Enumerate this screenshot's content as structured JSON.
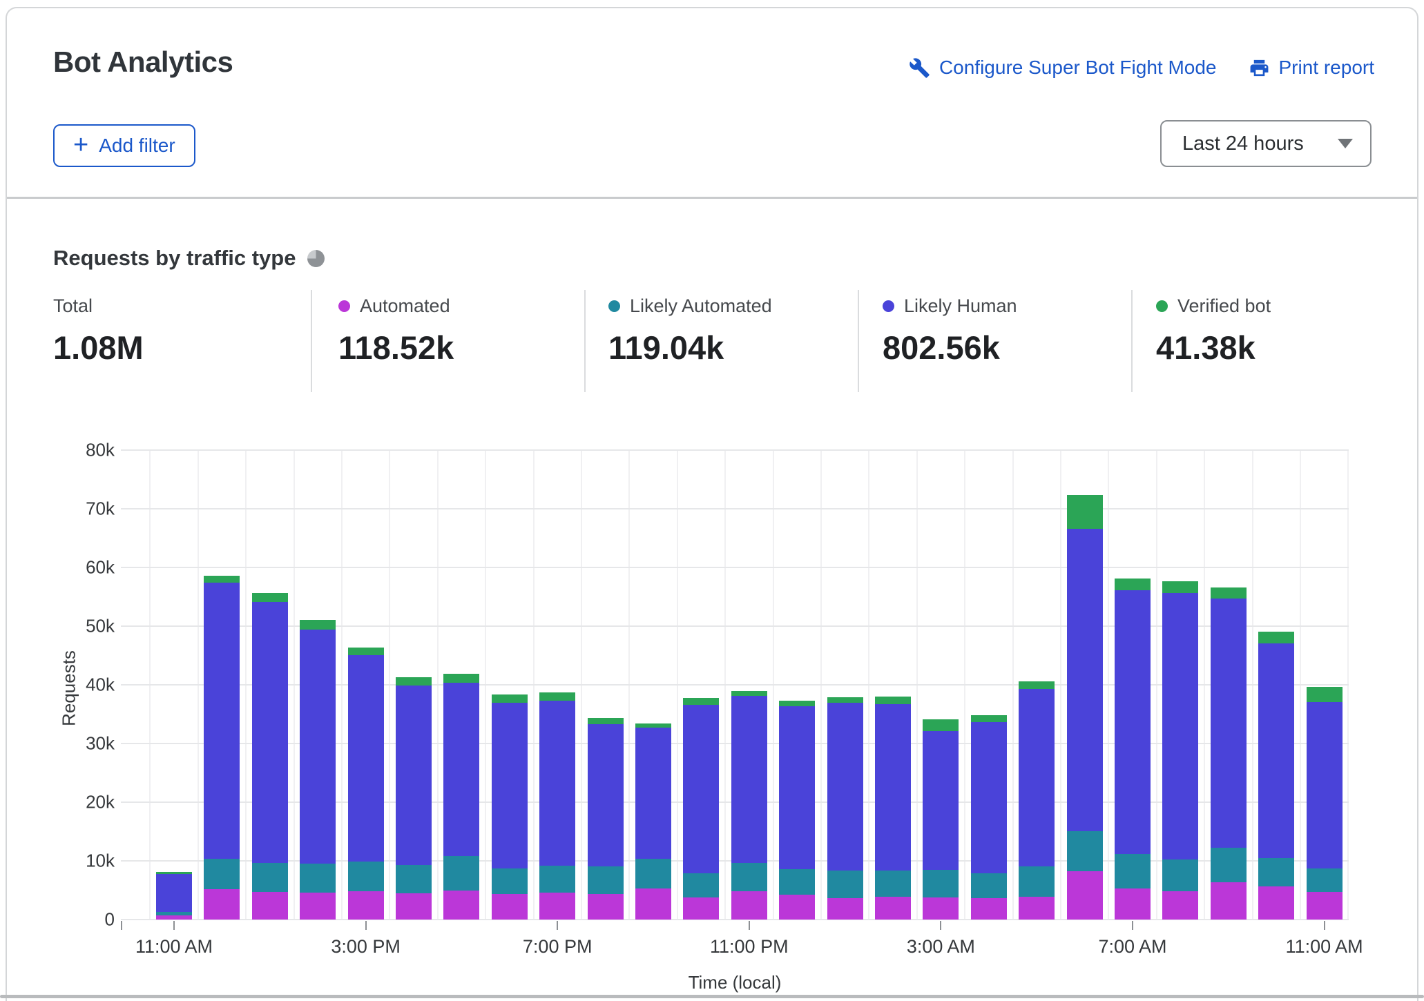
{
  "header": {
    "title": "Bot Analytics",
    "links": [
      {
        "label": "Configure Super Bot Fight Mode",
        "icon": "wrench-icon"
      },
      {
        "label": "Print report",
        "icon": "printer-icon"
      }
    ],
    "add_filter_label": "Add filter",
    "time_range": "Last 24 hours"
  },
  "section": {
    "title": "Requests by traffic type",
    "stats": [
      {
        "label": "Total",
        "value": "1.08M",
        "dot": null
      },
      {
        "label": "Automated",
        "value": "118.52k",
        "dot": "#bb37d8"
      },
      {
        "label": "Likely Automated",
        "value": "119.04k",
        "dot": "#2089a0"
      },
      {
        "label": "Likely Human",
        "value": "802.56k",
        "dot": "#4a43d9"
      },
      {
        "label": "Verified bot",
        "value": "41.38k",
        "dot": "#2ba556"
      }
    ]
  },
  "chart_data": {
    "type": "bar",
    "stacked": true,
    "title": "Requests by traffic type",
    "xlabel": "Time (local)",
    "ylabel": "Requests",
    "ylim": [
      0,
      80000
    ],
    "grid": true,
    "values_unit": "thousands of requests",
    "y_ticks": [
      "0",
      "10k",
      "20k",
      "30k",
      "40k",
      "50k",
      "60k",
      "70k",
      "80k"
    ],
    "x_tick_labels": [
      "11:00 AM",
      "3:00 PM",
      "7:00 PM",
      "11:00 PM",
      "3:00 AM",
      "7:00 AM",
      "11:00 AM"
    ],
    "x_tick_bar_indices": [
      0,
      4,
      8,
      12,
      16,
      20,
      24
    ],
    "categories": [
      "11:00 AM",
      "12:00 PM",
      "1:00 PM",
      "2:00 PM",
      "3:00 PM",
      "4:00 PM",
      "5:00 PM",
      "6:00 PM",
      "7:00 PM",
      "8:00 PM",
      "9:00 PM",
      "10:00 PM",
      "11:00 PM",
      "12:00 AM",
      "1:00 AM",
      "2:00 AM",
      "3:00 AM",
      "4:00 AM",
      "5:00 AM",
      "6:00 AM",
      "7:00 AM",
      "8:00 AM",
      "9:00 AM",
      "10:00 AM",
      "11:00 AM"
    ],
    "series": [
      {
        "name": "Automated",
        "color": "#bb37d8",
        "values": [
          0.7,
          5.2,
          4.7,
          4.6,
          4.8,
          4.5,
          4.9,
          4.4,
          4.6,
          4.4,
          5.3,
          3.8,
          4.8,
          4.2,
          3.6,
          3.9,
          3.8,
          3.7,
          3.9,
          8.2,
          5.3,
          4.8,
          6.3,
          5.6,
          4.7
        ]
      },
      {
        "name": "Likely Automated",
        "color": "#2089a0",
        "values": [
          0.6,
          5.1,
          5.0,
          4.9,
          5.1,
          4.8,
          5.9,
          4.3,
          4.6,
          4.7,
          5.1,
          4.1,
          4.8,
          4.4,
          4.8,
          4.5,
          4.7,
          4.2,
          5.2,
          6.9,
          5.9,
          5.4,
          5.9,
          4.9,
          4.0
        ]
      },
      {
        "name": "Likely Human",
        "color": "#4a43d9",
        "values": [
          6.5,
          47.1,
          44.4,
          39.9,
          35.2,
          30.6,
          29.5,
          28.2,
          28.1,
          24.2,
          22.3,
          28.7,
          28.5,
          27.7,
          28.5,
          28.3,
          23.6,
          25.7,
          30.2,
          51.5,
          44.9,
          45.4,
          42.5,
          36.6,
          28.4
        ]
      },
      {
        "name": "Verified bot",
        "color": "#2ba556",
        "values": [
          0.3,
          1.2,
          1.6,
          1.7,
          1.3,
          1.4,
          1.6,
          1.5,
          1.4,
          1.1,
          0.7,
          1.2,
          0.9,
          1.0,
          1.0,
          1.3,
          2.0,
          1.2,
          1.3,
          5.8,
          2.0,
          2.0,
          1.9,
          2.0,
          2.5
        ]
      }
    ],
    "legend_position": "top (stat row)"
  }
}
